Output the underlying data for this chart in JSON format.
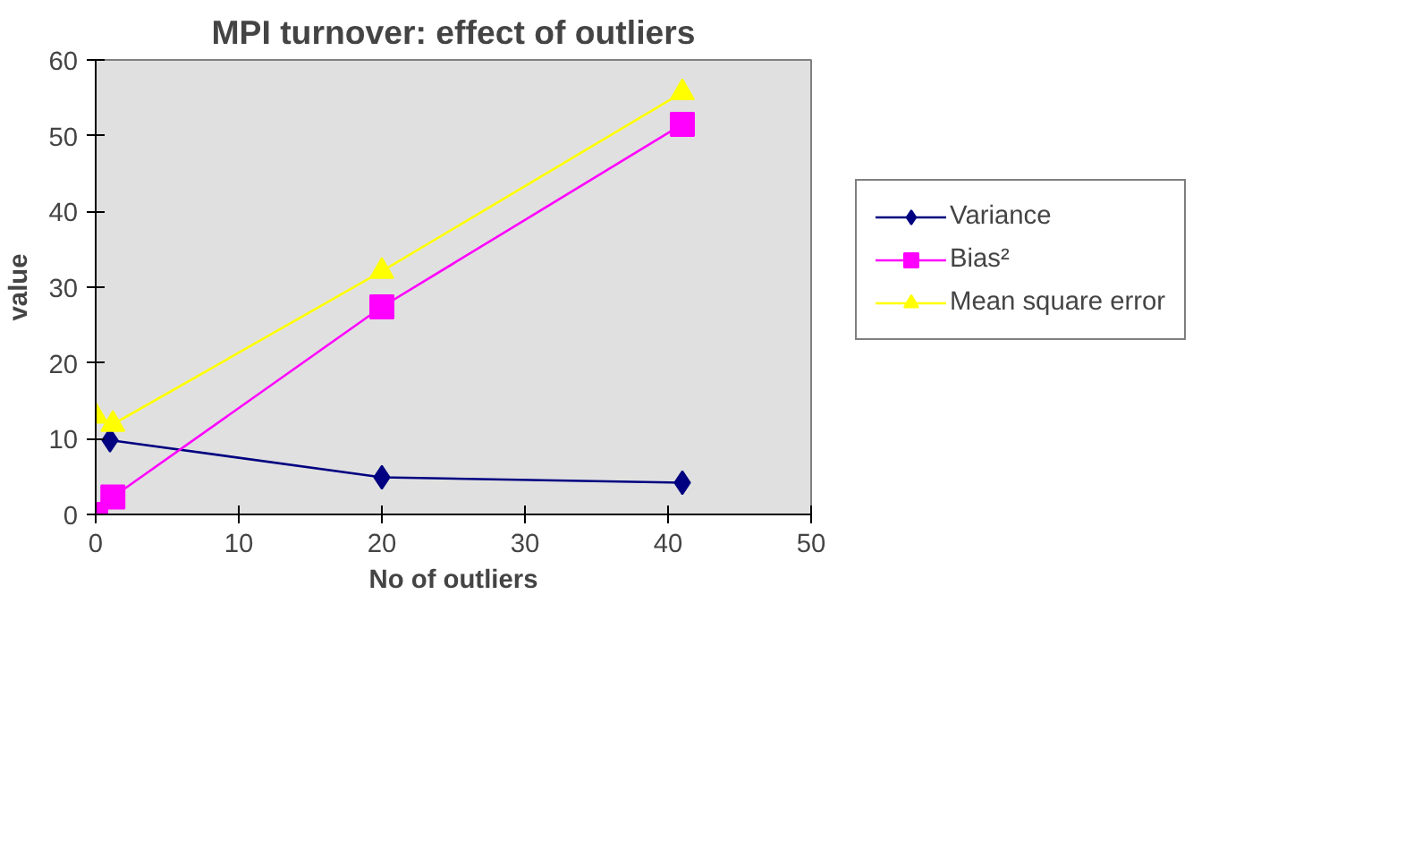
{
  "chart_data": {
    "type": "line",
    "title": "MPI turnover: effect of outliers",
    "xlabel": "No of outliers",
    "ylabel": "value",
    "xlim": [
      0,
      50
    ],
    "xticks": [
      0,
      10,
      20,
      30,
      40,
      50
    ],
    "ylim": [
      0,
      60
    ],
    "yticks": [
      0,
      10,
      20,
      30,
      40,
      50,
      60
    ],
    "grid": false,
    "legend": "right",
    "series": [
      {
        "name": "Variance",
        "color": "#000080",
        "marker": "diamond",
        "x": [
          1,
          20,
          41
        ],
        "values": [
          9.8,
          4.9,
          4.2
        ]
      },
      {
        "name": "Bias²",
        "color": "#ff00ff",
        "marker": "square",
        "x": [
          0,
          1.2,
          20,
          41
        ],
        "values": [
          0,
          2.3,
          27.4,
          51.5
        ]
      },
      {
        "name": "Mean square error",
        "color": "#ffff00",
        "marker": "triangle",
        "x": [
          0,
          1.2,
          20,
          41
        ],
        "values": [
          13,
          11.9,
          32.1,
          55.7
        ]
      }
    ]
  }
}
